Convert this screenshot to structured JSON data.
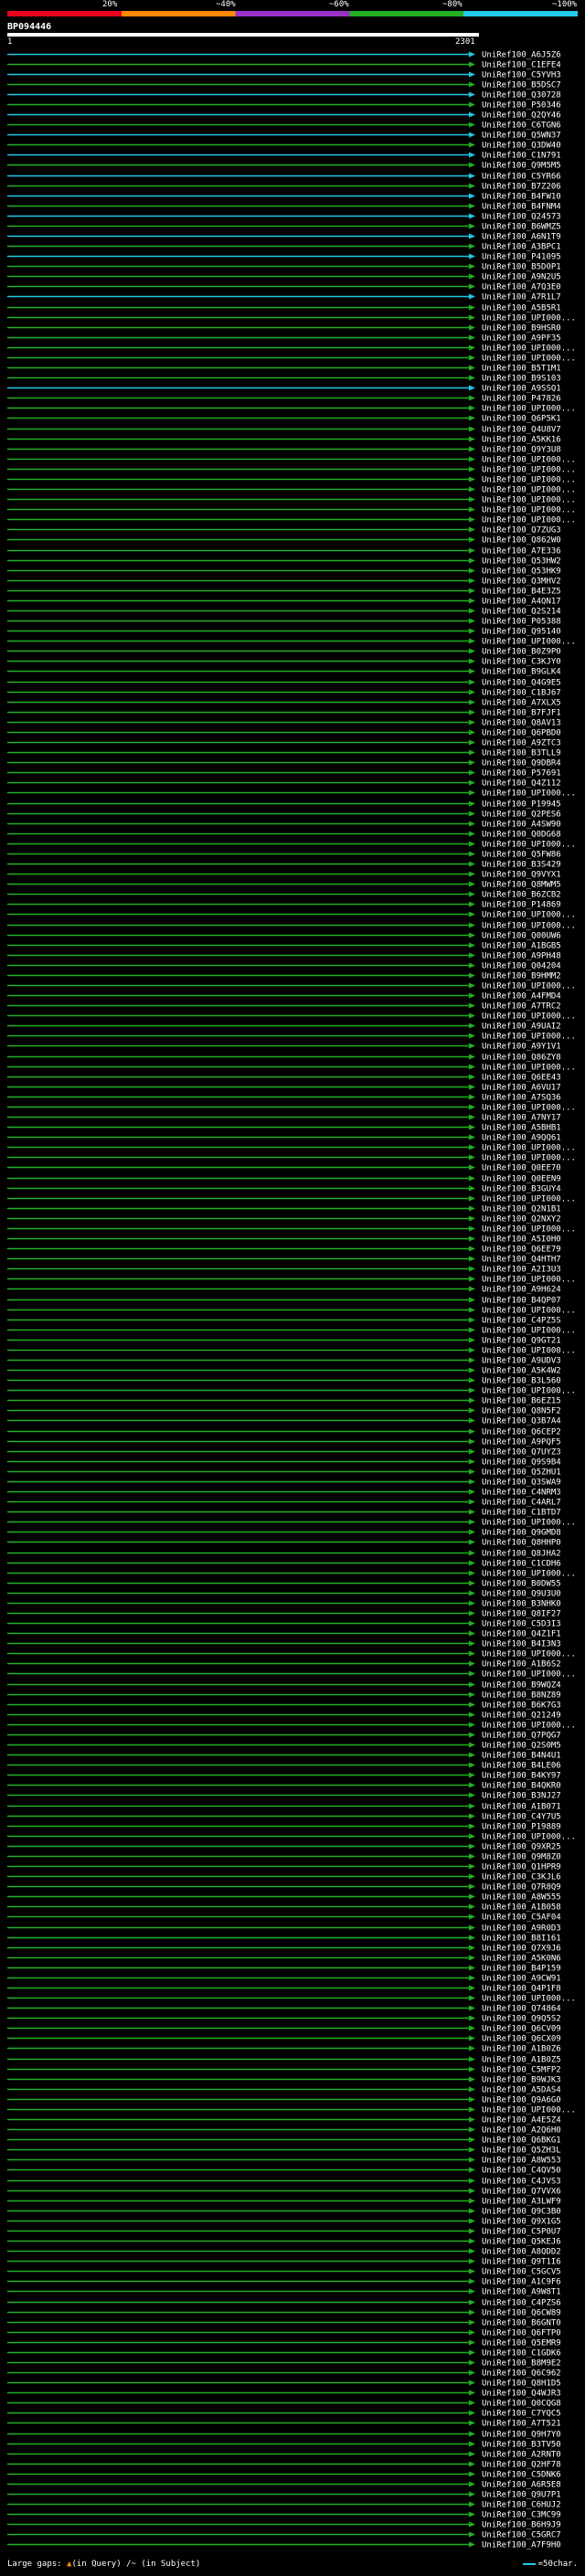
{
  "legend": {
    "ticks": [
      "20%",
      "~40%",
      "~60%",
      "~80%",
      "~100%"
    ],
    "colors": [
      "#e8001c",
      "#ff8800",
      "#9b30c8",
      "#22b022",
      "#22c8e8"
    ]
  },
  "query": {
    "id": "BP094446",
    "start": "1",
    "end": "2301"
  },
  "hits": [
    "UniRef100_A6J5Z6",
    "UniRef100_C1EFE4",
    "UniRef100_C5YVH3",
    "UniRef100_B5DSC7",
    "UniRef100_Q30728",
    "UniRef100_P50346",
    "UniRef100_Q2QY46",
    "UniRef100_C6TGN6",
    "UniRef100_Q5WN37",
    "UniRef100_Q3DW40",
    "UniRef100_C1N791",
    "UniRef100_Q9M5M5",
    "UniRef100_C5YR66",
    "UniRef100_B7Z206",
    "UniRef100_B4FW10",
    "UniRef100_B4FNM4",
    "UniRef100_Q24573",
    "UniRef100_B6WMZ5",
    "UniRef100_A6N1T9",
    "UniRef100_A3BPC1",
    "UniRef100_P41095",
    "UniRef100_B5D0P1",
    "UniRef100_A9N2U5",
    "UniRef100_A7Q3E0",
    "UniRef100_A7R1L7",
    "UniRef100_A5B5R1",
    "UniRef100_UPI000...",
    "UniRef100_B9HSR0",
    "UniRef100_A9PF35",
    "UniRef100_UPI000...",
    "UniRef100_UPI000...",
    "UniRef100_B5T1M1",
    "UniRef100_B9S103",
    "UniRef100_A9SSQ1",
    "UniRef100_P47826",
    "UniRef100_UPI000...",
    "UniRef100_Q6P5K1",
    "UniRef100_Q4U8V7",
    "UniRef100_A5KK16",
    "UniRef100_Q9Y3U8",
    "UniRef100_UPI000...",
    "UniRef100_UPI000...",
    "UniRef100_UPI000...",
    "UniRef100_UPI000...",
    "UniRef100_UPI000...",
    "UniRef100_UPI000...",
    "UniRef100_UPI000...",
    "UniRef100_Q7ZUG3",
    "UniRef100_Q862W0",
    "UniRef100_A7E336",
    "UniRef100_Q53HW2",
    "UniRef100_Q53HK9",
    "UniRef100_Q3MHV2",
    "UniRef100_B4E3Z5",
    "UniRef100_A4QN17",
    "UniRef100_Q2S214",
    "UniRef100_P05388",
    "UniRef100_Q95140",
    "UniRef100_UPI000...",
    "UniRef100_B0Z9P0",
    "UniRef100_C3KJY0",
    "UniRef100_B9GLK4",
    "UniRef100_Q4G9E5",
    "UniRef100_C1BJ67",
    "UniRef100_A7XLX5",
    "UniRef100_B7FJF1",
    "UniRef100_Q8AV13",
    "UniRef100_Q6PBD0",
    "UniRef100_A9ZTC3",
    "UniRef100_B3TLL9",
    "UniRef100_Q9DBR4",
    "UniRef100_P57691",
    "UniRef100_Q4Z112",
    "UniRef100_UPI000...",
    "UniRef100_P19945",
    "UniRef100_Q2PES6",
    "UniRef100_A4SW90",
    "UniRef100_Q0DG68",
    "UniRef100_UPI000...",
    "UniRef100_Q5FW86",
    "UniRef100_B3S429",
    "UniRef100_Q9VYX1",
    "UniRef100_Q8MWM5",
    "UniRef100_B6ZCB2",
    "UniRef100_P14869",
    "UniRef100_UPI000...",
    "UniRef100_UPI000...",
    "UniRef100_Q00UW6",
    "UniRef100_A1BGB5",
    "UniRef100_A9PH48",
    "UniRef100_Q04204",
    "UniRef100_B9HMM2",
    "UniRef100_UPI000...",
    "UniRef100_A4FMD4",
    "UniRef100_A7TRC2",
    "UniRef100_UPI000...",
    "UniRef100_A9UAI2",
    "UniRef100_UPI000...",
    "UniRef100_A9Y1V1",
    "UniRef100_Q86ZY8",
    "UniRef100_UPI000...",
    "UniRef100_Q6EE43",
    "UniRef100_A6VU17",
    "UniRef100_A7SQ36",
    "UniRef100_UPI000...",
    "UniRef100_A7NY17",
    "UniRef100_A5BHB1",
    "UniRef100_A9QQ61",
    "UniRef100_UPI000...",
    "UniRef100_UPI000...",
    "UniRef100_Q0EE70",
    "UniRef100_Q0EEN9",
    "UniRef100_B3GUY4",
    "UniRef100_UPI000...",
    "UniRef100_Q2N1B1",
    "UniRef100_Q2NXY2",
    "UniRef100_UPI000...",
    "UniRef100_A5I0H0",
    "UniRef100_Q6EE79",
    "UniRef100_Q4HTH7",
    "UniRef100_A2I3U3",
    "UniRef100_UPI000...",
    "UniRef100_A9H624",
    "UniRef100_B4QP07",
    "UniRef100_UPI000...",
    "UniRef100_C4PZ5S",
    "UniRef100_UPI000...",
    "UniRef100_Q9GT21",
    "UniRef100_UPI000...",
    "UniRef100_A9UDV3",
    "UniRef100_A5K4W2",
    "UniRef100_B3L560",
    "UniRef100_UPI000...",
    "UniRef100_B6EZ15",
    "UniRef100_Q8N5F2",
    "UniRef100_Q3B7A4",
    "UniRef100_Q6CEP2",
    "UniRef100_A9PQF5",
    "UniRef100_Q7UYZ3",
    "UniRef100_Q9S9B4",
    "UniRef100_Q5ZHU1",
    "UniRef100_Q3SWA9",
    "UniRef100_C4NRM3",
    "UniRef100_C4ARL7",
    "UniRef100_C1BTD7",
    "UniRef100_UPI000...",
    "UniRef100_Q9GMD8",
    "UniRef100_Q8HHP0",
    "UniRef100_Q8JHA2",
    "UniRef100_C1CDH6",
    "UniRef100_UPI000...",
    "UniRef100_B0DW55",
    "UniRef100_Q9U3U0",
    "UniRef100_B3NHK0",
    "UniRef100_Q8IF27",
    "UniRef100_C5D3I3",
    "UniRef100_Q4Z1F1",
    "UniRef100_B4I3N3",
    "UniRef100_UPI000...",
    "UniRef100_A1B6S2",
    "UniRef100_UPI000...",
    "UniRef100_B9WQZ4",
    "UniRef100_B8NZ89",
    "UniRef100_B6K7G3",
    "UniRef100_Q21249",
    "UniRef100_UPI000...",
    "UniRef100_Q7PQG7",
    "UniRef100_Q2S0M5",
    "UniRef100_B4N4U1",
    "UniRef100_B4LE06",
    "UniRef100_B4KY97",
    "UniRef100_B4QKR0",
    "UniRef100_B3NJ27",
    "UniRef100_A1B071",
    "UniRef100_C4Y7U5",
    "UniRef100_P19889",
    "UniRef100_UPI000...",
    "UniRef100_Q9XR25",
    "UniRef100_Q9M8Z0",
    "UniRef100_Q1HPR9",
    "UniRef100_C3KJL6",
    "UniRef100_Q7R8Q9",
    "UniRef100_A8W555",
    "UniRef100_A1B058",
    "UniRef100_C5AF04",
    "UniRef100_A9R0D3",
    "UniRef100_B8I161",
    "UniRef100_Q7X9J6",
    "UniRef100_A5K0N6",
    "UniRef100_B4P159",
    "UniRef100_A9CW91",
    "UniRef100_Q4P1F8",
    "UniRef100_UPI000...",
    "UniRef100_Q74864",
    "UniRef100_Q9Q5S2",
    "UniRef100_Q6CV09",
    "UniRef100_Q6CX09",
    "UniRef100_A1B0Z6",
    "UniRef100_A1B0Z5",
    "UniRef100_C5MFP2",
    "UniRef100_B9WJK3",
    "UniRef100_A5DAS4",
    "UniRef100_Q9A6G0",
    "UniRef100_UPI000...",
    "UniRef100_A4E5Z4",
    "UniRef100_A2Q6H0",
    "UniRef100_Q6BKG1",
    "UniRef100_Q5ZH3L",
    "UniRef100_A8W553",
    "UniRef100_C4QV50",
    "UniRef100_C4JVS3",
    "UniRef100_Q7VVX6",
    "UniRef100_A3LWF9",
    "UniRef100_Q9C3B0",
    "UniRef100_Q9X1G5",
    "UniRef100_C5P0U7",
    "UniRef100_Q5KEJ6",
    "UniRef100_A8QDD2",
    "UniRef100_Q9T1I6",
    "UniRef100_C5GCV5",
    "UniRef100_A1C9F6",
    "UniRef100_A9W8T1",
    "UniRef100_C4PZS6",
    "UniRef100_Q6CW89",
    "UniRef100_B6GNT0",
    "UniRef100_Q6FTP0",
    "UniRef100_Q5EMR9",
    "UniRef100_C1GDK6",
    "UniRef100_B8M9E2",
    "UniRef100_Q6C962",
    "UniRef100_Q8H1D5",
    "UniRef100_Q4WJR3",
    "UniRef100_Q0CQG8",
    "UniRef100_C7YQC5",
    "UniRef100_A7T521",
    "UniRef100_Q9H7Y0",
    "UniRef100_B3TV50",
    "UniRef100_A2RNT0",
    "UniRef100_Q2HF78",
    "UniRef100_C5DNK6",
    "UniRef100_A6R5E8",
    "UniRef100_Q9U7P1",
    "UniRef100_C6HUJ2",
    "UniRef100_C3MC99",
    "UniRef100_B6H9J9",
    "UniRef100_C5GRC7",
    "UniRef100_A7F9H0"
  ],
  "footer": {
    "large_gaps_label": "Large gaps:",
    "in_query": "(in Query)",
    "in_subject": "(in Subject)",
    "scale_label": "=50char."
  }
}
